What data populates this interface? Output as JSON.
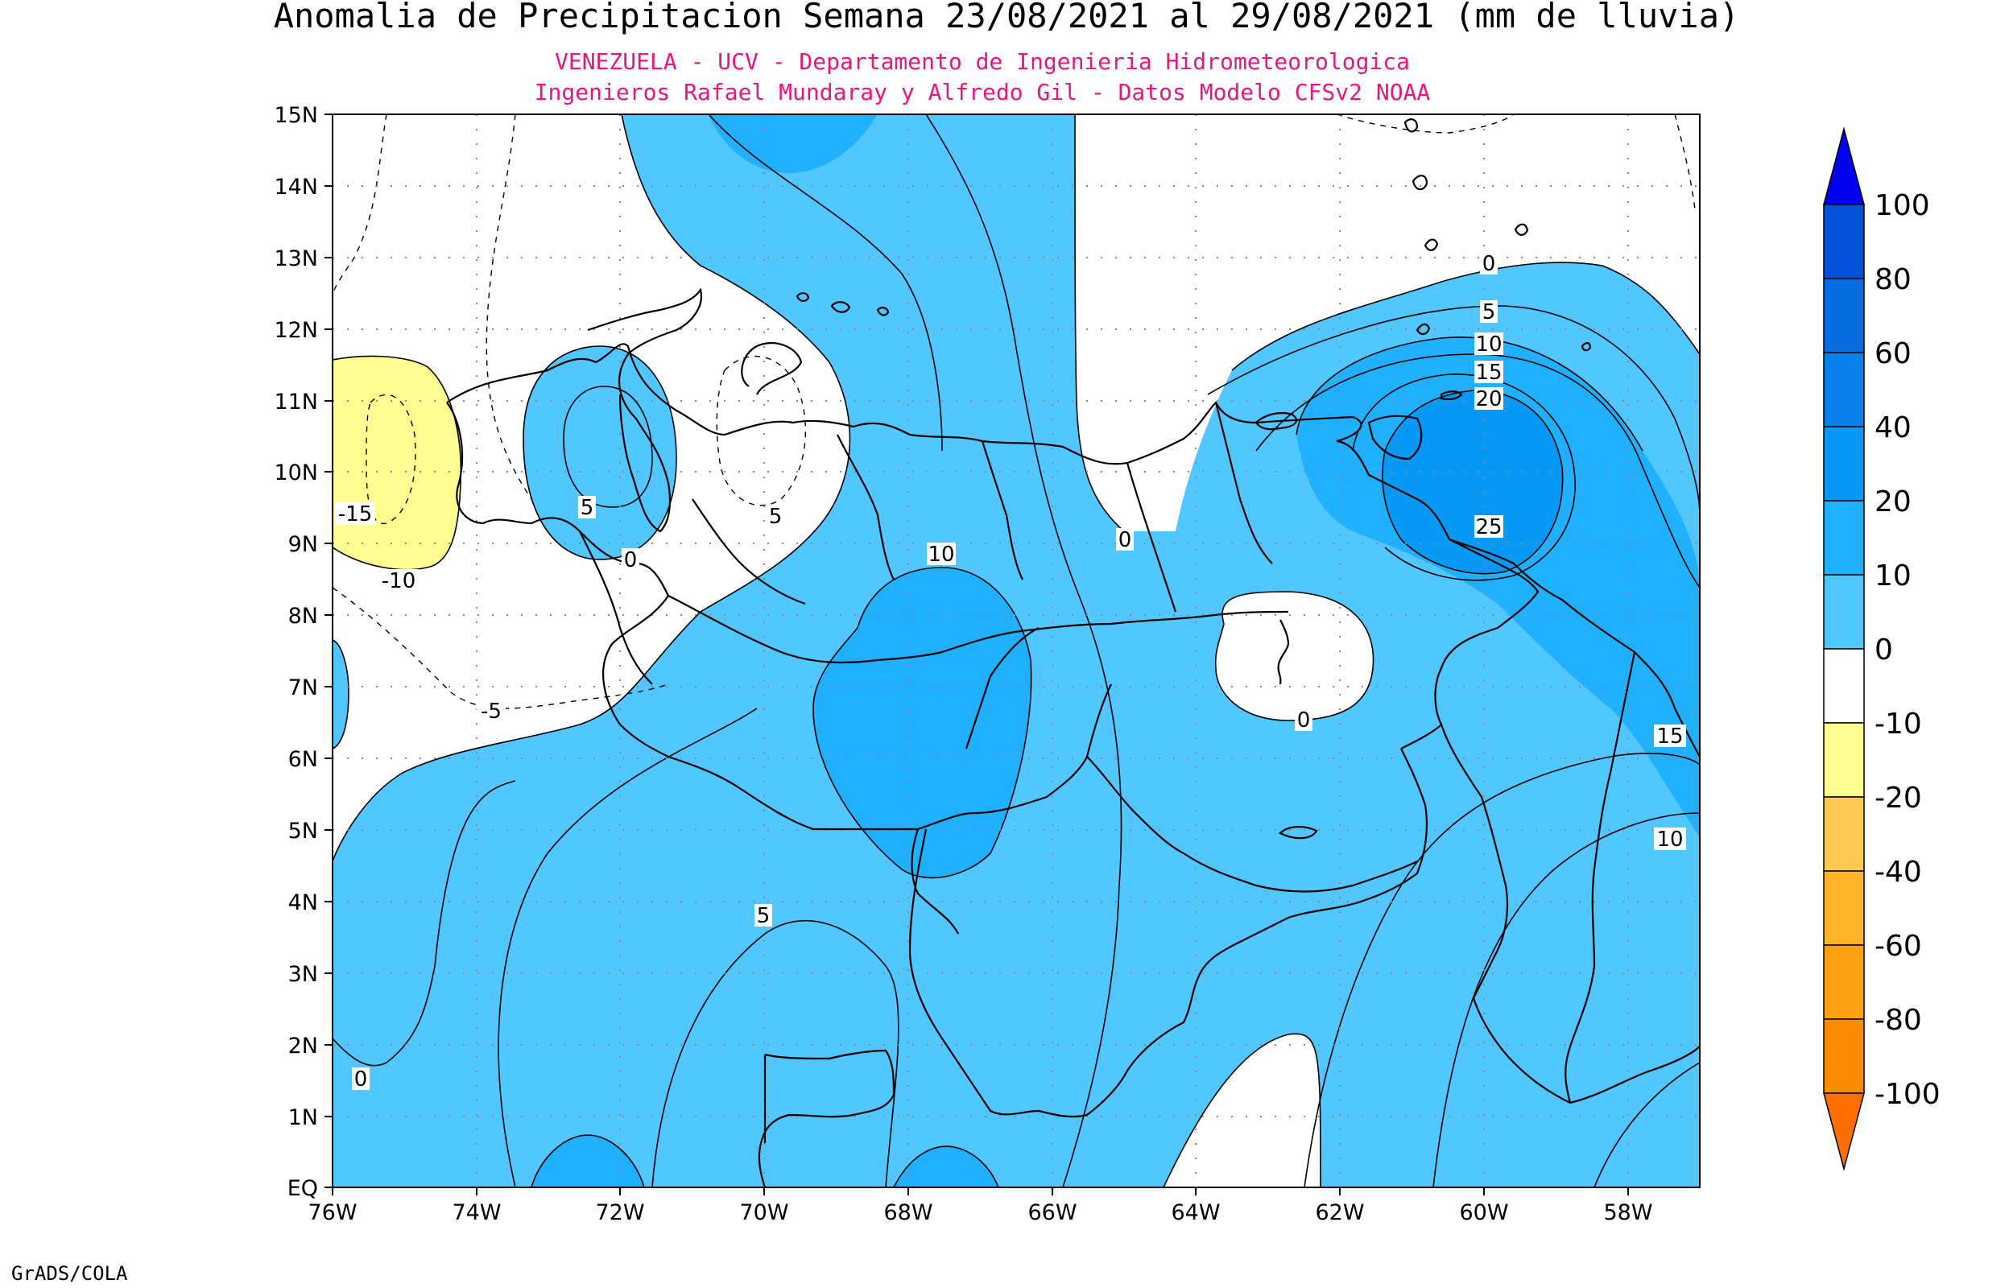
{
  "title": "Anomalia de Precipitacion Semana 23/08/2021 al 29/08/2021 (mm de lluvia)",
  "subtitle_1": "VENEZUELA - UCV - Departamento de Ingenieria Hidrometeorologica",
  "subtitle_2": "Ingenieros Rafael Mundaray y Alfredo Gil - Datos Modelo CFSv2 NOAA",
  "footer": "GrADS/COLA",
  "colors": {
    "title": "#000000",
    "subtitle": "#e8157f",
    "frame": "#000000",
    "pos_0_10": "#52c6fe",
    "pos_10_20": "#20b0fd",
    "pos_20_40": "#0898f5",
    "pos_40_60": "#0782ea",
    "pos_60_80": "#066ee0",
    "pos_80_100": "#0550d8",
    "pos_over_100": "#0000f0",
    "neg_0_10": "#ffffff",
    "neg_10_20": "#fdfd90",
    "neg_20_40": "#fdc850",
    "neg_40_60": "#fdb428",
    "neg_60_80": "#fda010",
    "neg_80_100": "#fd8c00",
    "neg_under_100": "#fd7000"
  },
  "map": {
    "lon_ticks": [
      "76W",
      "74W",
      "72W",
      "70W",
      "68W",
      "66W",
      "64W",
      "62W",
      "60W",
      "58W"
    ],
    "lat_ticks": [
      "EQ",
      "1N",
      "2N",
      "3N",
      "4N",
      "5N",
      "6N",
      "7N",
      "8N",
      "9N",
      "10N",
      "11N",
      "12N",
      "13N",
      "14N",
      "15N"
    ],
    "contour_labels": [
      {
        "text": "0",
        "lon": -60.0,
        "lat": 12.9
      },
      {
        "text": "5",
        "lon": -60.0,
        "lat": 12.3
      },
      {
        "text": "10",
        "lon": -60.0,
        "lat": 11.85
      },
      {
        "text": "15",
        "lon": -60.0,
        "lat": 11.45
      },
      {
        "text": "20",
        "lon": -60.0,
        "lat": 11.1
      },
      {
        "text": "25",
        "lon": -60.0,
        "lat": 9.2
      },
      {
        "text": "10",
        "lon": -67.6,
        "lat": 8.9
      },
      {
        "text": "0",
        "lon": -65.1,
        "lat": 9.1
      },
      {
        "text": "0",
        "lon": -62.5,
        "lat": 6.5
      },
      {
        "text": "15",
        "lon": -57.3,
        "lat": 6.3
      },
      {
        "text": "10",
        "lon": -57.3,
        "lat": 4.9
      },
      {
        "text": "5",
        "lon": -70.0,
        "lat": 3.8
      },
      {
        "text": "0",
        "lon": -75.8,
        "lat": 1.55
      },
      {
        "text": "5",
        "lon": -72.6,
        "lat": 9.5
      },
      {
        "text": "0",
        "lon": -72.0,
        "lat": 8.85
      },
      {
        "text": "5",
        "lon": -69.9,
        "lat": 9.4
      },
      {
        "text": "-15",
        "lon": -75.6,
        "lat": 9.4
      },
      {
        "text": "-10",
        "lon": -75.0,
        "lat": 8.5
      },
      {
        "text": "-5",
        "lon": -73.8,
        "lat": 6.7
      }
    ]
  },
  "colorbar": {
    "labels": [
      "100",
      "80",
      "60",
      "40",
      "20",
      "10",
      "0",
      "-10",
      "-20",
      "-40",
      "-60",
      "-80",
      "-100"
    ]
  }
}
